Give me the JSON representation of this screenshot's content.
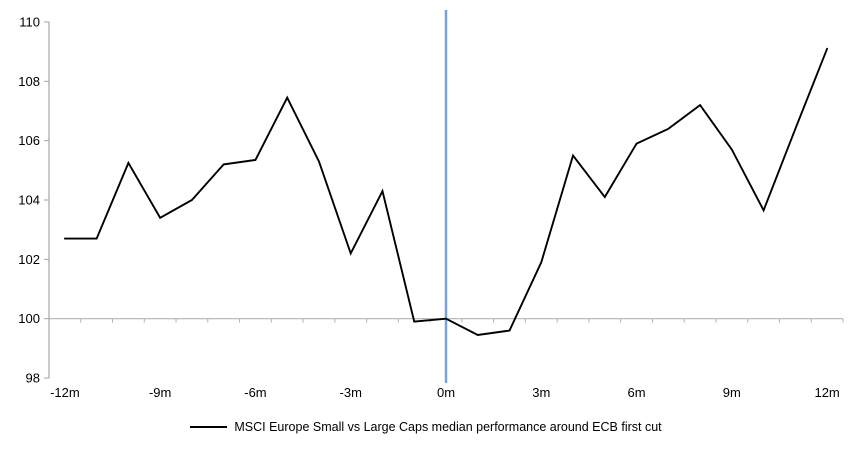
{
  "chart_data": {
    "type": "line",
    "title": "",
    "xlabel": "",
    "ylabel": "",
    "categories_months": [
      -12,
      -11,
      -10,
      -9,
      -8,
      -7,
      -6,
      -5,
      -4,
      -3,
      -2,
      -1,
      0,
      1,
      2,
      3,
      4,
      5,
      6,
      7,
      8,
      9,
      10,
      11,
      12
    ],
    "series": [
      {
        "name": "MSCI Europe Small vs Large Caps median performance around ECB first cut",
        "color": "#000000",
        "values": [
          102.7,
          102.7,
          105.25,
          103.4,
          104.0,
          105.2,
          105.35,
          107.45,
          105.3,
          102.2,
          104.3,
          99.9,
          100.0,
          99.45,
          99.6,
          101.9,
          105.5,
          104.1,
          105.9,
          106.4,
          107.2,
          105.7,
          103.65,
          106.4,
          109.1
        ]
      }
    ],
    "x_ticks": [
      {
        "month": -12,
        "label": "-12m"
      },
      {
        "month": -9,
        "label": "-9m"
      },
      {
        "month": -6,
        "label": "-6m"
      },
      {
        "month": -3,
        "label": "-3m"
      },
      {
        "month": 0,
        "label": "0m"
      },
      {
        "month": 3,
        "label": "3m"
      },
      {
        "month": 6,
        "label": "6m"
      },
      {
        "month": 9,
        "label": "9m"
      },
      {
        "month": 12,
        "label": "12m"
      }
    ],
    "y_ticks": [
      98,
      100,
      102,
      104,
      106,
      108,
      110
    ],
    "ylim": [
      98,
      110
    ],
    "grid": "off",
    "legend_position": "bottom",
    "annotations": {
      "vertical_event_line": {
        "x_month": 0,
        "color": "#78a3d4"
      },
      "horizontal_baseline": {
        "value": 100,
        "color": "#b3b3b3"
      }
    },
    "axis_color": "#a6a6a6"
  }
}
